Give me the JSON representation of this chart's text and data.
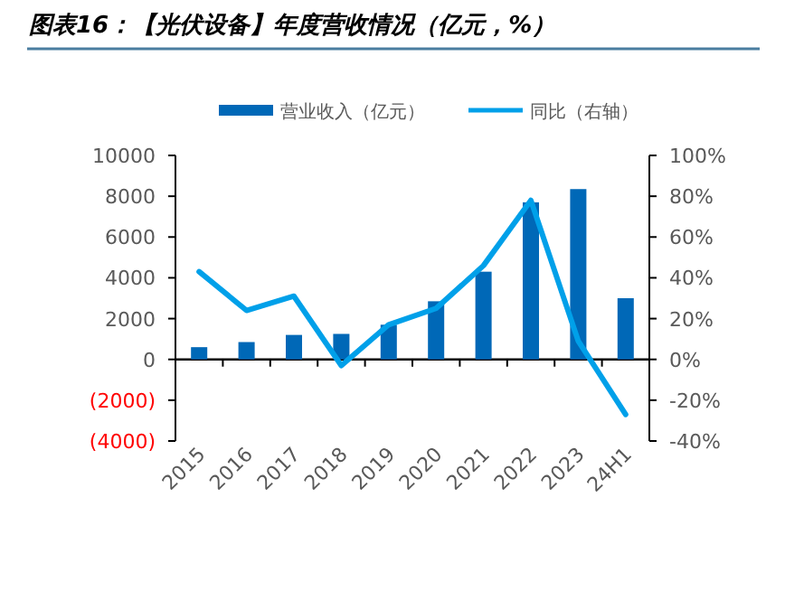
{
  "chart_data": {
    "type": "bar",
    "title": "图表16：【光伏设备】年度营收情况（亿元，%）",
    "categories": [
      "2015",
      "2016",
      "2017",
      "2018",
      "2019",
      "2020",
      "2021",
      "2022",
      "2023",
      "24H1"
    ],
    "series": [
      {
        "name": "营业收入（亿元）",
        "color": "#0068b7",
        "values": [
          600,
          850,
          1200,
          1250,
          1700,
          2850,
          4300,
          7700,
          8350,
          3000
        ]
      },
      {
        "name": "同比（右轴）",
        "type": "line",
        "axis": "y2",
        "color": "#00a0e9",
        "values": [
          43,
          24,
          31,
          -3,
          17,
          25,
          46,
          78,
          9,
          -27
        ]
      }
    ],
    "ylim": [
      -4000,
      10000
    ],
    "yticks": [
      {
        "value": -4000,
        "label": "(4000)"
      },
      {
        "value": -2000,
        "label": "(2000)"
      },
      0,
      2000,
      4000,
      6000,
      8000,
      10000
    ],
    "y2lim": [
      -40,
      100
    ],
    "y2ticks": [
      {
        "value": -40,
        "label": "-40%"
      },
      {
        "value": -20,
        "label": "-20%"
      },
      {
        "value": 0,
        "label": "0%"
      },
      {
        "value": 20,
        "label": "20%"
      },
      {
        "value": 40,
        "label": "40%"
      },
      {
        "value": 60,
        "label": "60%"
      },
      {
        "value": 80,
        "label": "80%"
      },
      {
        "value": 100,
        "label": "100%"
      }
    ],
    "legend": "top",
    "marker": "none",
    "line_style": "solid"
  }
}
